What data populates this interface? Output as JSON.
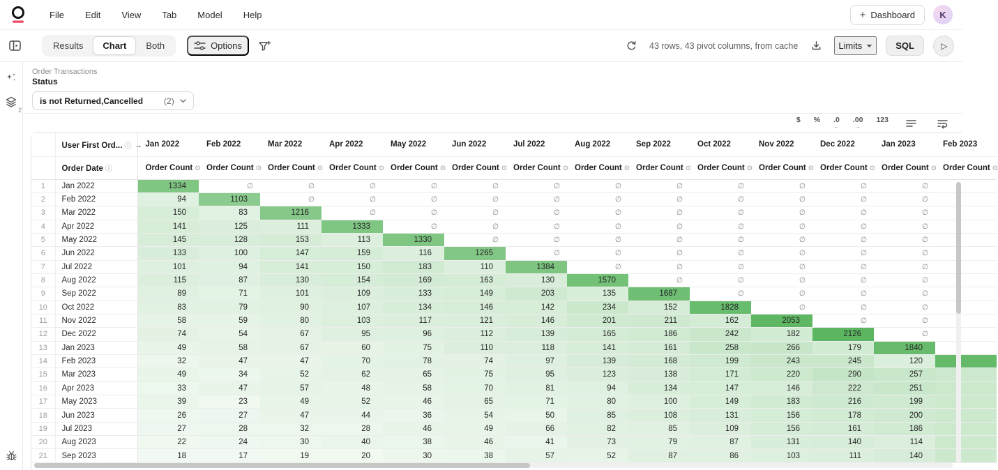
{
  "menubar": {
    "menus": [
      "File",
      "Edit",
      "View",
      "Tab",
      "Model",
      "Help"
    ],
    "dashboard_label": "Dashboard",
    "plus_glyph": "+",
    "avatar_initial": "K"
  },
  "toolbar": {
    "view_tabs": [
      "Results",
      "Chart",
      "Both"
    ],
    "active_tab": "Chart",
    "options_label": "Options",
    "status_text": "43 rows, 43 pivot columns, from cache",
    "limits_label": "Limits",
    "sql_label": "SQL",
    "play_glyph": "▷"
  },
  "filters": {
    "section_label": "Order Transactions",
    "field_label": "Status",
    "value": "is not Returned,Cancelled",
    "count": "(2)"
  },
  "rail": {
    "layers_badge": "2"
  },
  "format_toolbar": {
    "text_icons": [
      {
        "name": "currency-format-icon",
        "glyph": "$",
        "sub": ""
      },
      {
        "name": "percent-format-icon",
        "glyph": "%",
        "sub": ""
      },
      {
        "name": "decrease-decimal-icon",
        "glyph": ".0",
        "sub": "←"
      },
      {
        "name": "increase-decimal-icon",
        "glyph": ".00",
        "sub": "→"
      },
      {
        "name": "digit-grouping-icon",
        "glyph": "123",
        "sub": ""
      }
    ]
  },
  "colors": {
    "logo_accent": "#ee4a63",
    "heatmap_green": "#5cb661",
    "avatar_bg": "#e8d9f7"
  },
  "chart_data": {
    "type": "heatmap",
    "column_dimension_label": "User First Ord...",
    "row_dimension_label": "Order Date",
    "measure_label": "Order Count",
    "null_symbol": "∅",
    "value_range": [
      17,
      2126
    ],
    "clipped_value_tokens": {
      "#high": "dark green cell, number clipped off-screen",
      "#low": "light green cell, number clipped off-screen",
      "": "empty white cell (clipped)"
    },
    "columns": [
      "Jan 2022",
      "Feb 2022",
      "Mar 2022",
      "Apr 2022",
      "May 2022",
      "Jun 2022",
      "Jul 2022",
      "Aug 2022",
      "Sep 2022",
      "Oct 2022",
      "Nov 2022",
      "Dec 2022",
      "Jan 2023",
      "Feb 2023"
    ],
    "rows": [
      {
        "n": 1,
        "label": "Jan 2022",
        "values": [
          1334,
          "∅",
          "∅",
          "∅",
          "∅",
          "∅",
          "∅",
          "∅",
          "∅",
          "∅",
          "∅",
          "∅",
          "∅",
          ""
        ]
      },
      {
        "n": 2,
        "label": "Feb 2022",
        "values": [
          94,
          1103,
          "∅",
          "∅",
          "∅",
          "∅",
          "∅",
          "∅",
          "∅",
          "∅",
          "∅",
          "∅",
          "∅",
          ""
        ]
      },
      {
        "n": 3,
        "label": "Mar 2022",
        "values": [
          150,
          83,
          1216,
          "∅",
          "∅",
          "∅",
          "∅",
          "∅",
          "∅",
          "∅",
          "∅",
          "∅",
          "∅",
          ""
        ]
      },
      {
        "n": 4,
        "label": "Apr 2022",
        "values": [
          141,
          125,
          111,
          1333,
          "∅",
          "∅",
          "∅",
          "∅",
          "∅",
          "∅",
          "∅",
          "∅",
          "∅",
          ""
        ]
      },
      {
        "n": 5,
        "label": "May 2022",
        "values": [
          145,
          128,
          153,
          113,
          1330,
          "∅",
          "∅",
          "∅",
          "∅",
          "∅",
          "∅",
          "∅",
          "∅",
          ""
        ]
      },
      {
        "n": 6,
        "label": "Jun 2022",
        "values": [
          133,
          100,
          147,
          159,
          116,
          1265,
          "∅",
          "∅",
          "∅",
          "∅",
          "∅",
          "∅",
          "∅",
          ""
        ]
      },
      {
        "n": 7,
        "label": "Jul 2022",
        "values": [
          101,
          94,
          141,
          150,
          183,
          110,
          1384,
          "∅",
          "∅",
          "∅",
          "∅",
          "∅",
          "∅",
          ""
        ]
      },
      {
        "n": 8,
        "label": "Aug 2022",
        "values": [
          115,
          87,
          130,
          154,
          169,
          163,
          130,
          1570,
          "∅",
          "∅",
          "∅",
          "∅",
          "∅",
          ""
        ]
      },
      {
        "n": 9,
        "label": "Sep 2022",
        "values": [
          89,
          71,
          101,
          109,
          133,
          149,
          203,
          135,
          1687,
          "∅",
          "∅",
          "∅",
          "∅",
          ""
        ]
      },
      {
        "n": 10,
        "label": "Oct 2022",
        "values": [
          83,
          79,
          90,
          107,
          134,
          146,
          142,
          234,
          152,
          1828,
          "∅",
          "∅",
          "∅",
          ""
        ]
      },
      {
        "n": 11,
        "label": "Nov 2022",
        "values": [
          58,
          59,
          80,
          103,
          117,
          121,
          146,
          201,
          211,
          162,
          2053,
          "∅",
          "∅",
          ""
        ]
      },
      {
        "n": 12,
        "label": "Dec 2022",
        "values": [
          74,
          54,
          67,
          95,
          96,
          112,
          139,
          165,
          186,
          242,
          182,
          2126,
          "∅",
          ""
        ]
      },
      {
        "n": 13,
        "label": "Jan 2023",
        "values": [
          49,
          58,
          67,
          60,
          75,
          110,
          118,
          141,
          161,
          258,
          266,
          179,
          1840,
          ""
        ]
      },
      {
        "n": 14,
        "label": "Feb 2023",
        "values": [
          32,
          47,
          47,
          70,
          78,
          74,
          97,
          139,
          168,
          199,
          243,
          245,
          120,
          "#high"
        ]
      },
      {
        "n": 15,
        "label": "Mar 2023",
        "values": [
          49,
          34,
          52,
          62,
          65,
          75,
          95,
          123,
          138,
          171,
          220,
          290,
          257,
          "#low"
        ]
      },
      {
        "n": 16,
        "label": "Apr 2023",
        "values": [
          33,
          47,
          57,
          48,
          58,
          70,
          81,
          94,
          134,
          147,
          146,
          222,
          251,
          "#low"
        ]
      },
      {
        "n": 17,
        "label": "May 2023",
        "values": [
          39,
          23,
          49,
          52,
          46,
          65,
          71,
          80,
          100,
          149,
          183,
          216,
          199,
          "#low"
        ]
      },
      {
        "n": 18,
        "label": "Jun 2023",
        "values": [
          26,
          27,
          47,
          44,
          36,
          54,
          50,
          85,
          108,
          131,
          156,
          178,
          200,
          "#low"
        ]
      },
      {
        "n": 19,
        "label": "Jul 2023",
        "values": [
          27,
          28,
          32,
          28,
          46,
          49,
          66,
          82,
          85,
          109,
          156,
          161,
          186,
          "#low"
        ]
      },
      {
        "n": 20,
        "label": "Aug 2023",
        "values": [
          22,
          24,
          30,
          40,
          38,
          46,
          41,
          73,
          79,
          87,
          131,
          140,
          114,
          "#low"
        ]
      },
      {
        "n": 21,
        "label": "Sep 2023",
        "values": [
          18,
          17,
          19,
          20,
          30,
          38,
          57,
          52,
          87,
          86,
          103,
          111,
          140,
          "#low"
        ]
      }
    ]
  }
}
